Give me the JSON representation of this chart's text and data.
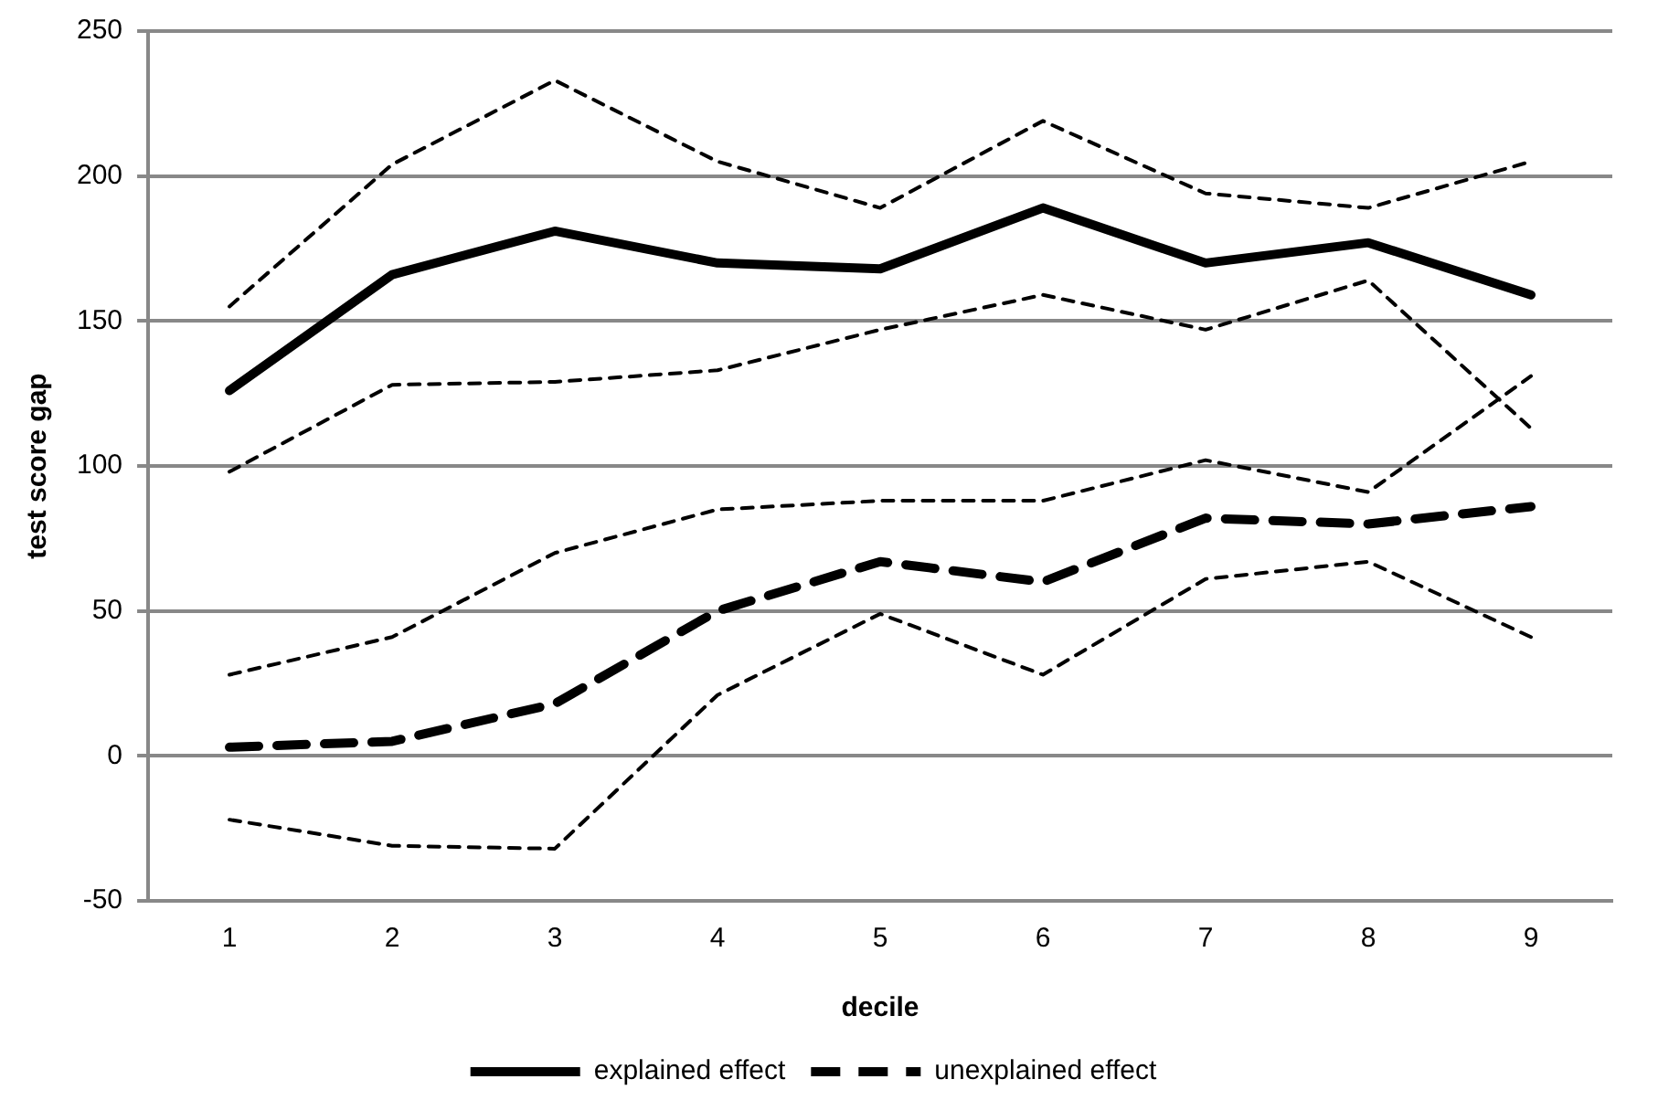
{
  "chart_data": {
    "type": "line",
    "xlabel": "decile",
    "ylabel": "test score gap",
    "categories": [
      "1",
      "2",
      "3",
      "4",
      "5",
      "6",
      "7",
      "8",
      "9"
    ],
    "ylim": [
      -50,
      250
    ],
    "yticks": [
      -50,
      0,
      50,
      100,
      150,
      200,
      250
    ],
    "grid": "y",
    "legend": "bottom",
    "marker": "none",
    "series": [
      {
        "name": "explained effect",
        "color": "#000000",
        "line_style": "solid",
        "values": [
          126,
          166,
          181,
          170,
          168,
          189,
          170,
          177,
          159
        ]
      },
      {
        "color": "#000000",
        "line_style": "dotted",
        "values": [
          155,
          204,
          233,
          205,
          189,
          219,
          194,
          189,
          205
        ]
      },
      {
        "color": "#000000",
        "line_style": "dotted",
        "values": [
          98,
          128,
          129,
          133,
          147,
          159,
          147,
          164,
          113
        ]
      },
      {
        "name": "unexplained effect",
        "color": "#000000",
        "line_style": "dashed",
        "values": [
          3,
          5,
          18,
          50,
          67,
          60,
          82,
          80,
          86
        ]
      },
      {
        "color": "#000000",
        "line_style": "dotted",
        "values": [
          28,
          41,
          70,
          85,
          88,
          88,
          102,
          91,
          131
        ]
      },
      {
        "color": "#000000",
        "line_style": "dotted",
        "values": [
          -22,
          -31,
          -32,
          21,
          49,
          28,
          61,
          67,
          41
        ]
      }
    ]
  }
}
